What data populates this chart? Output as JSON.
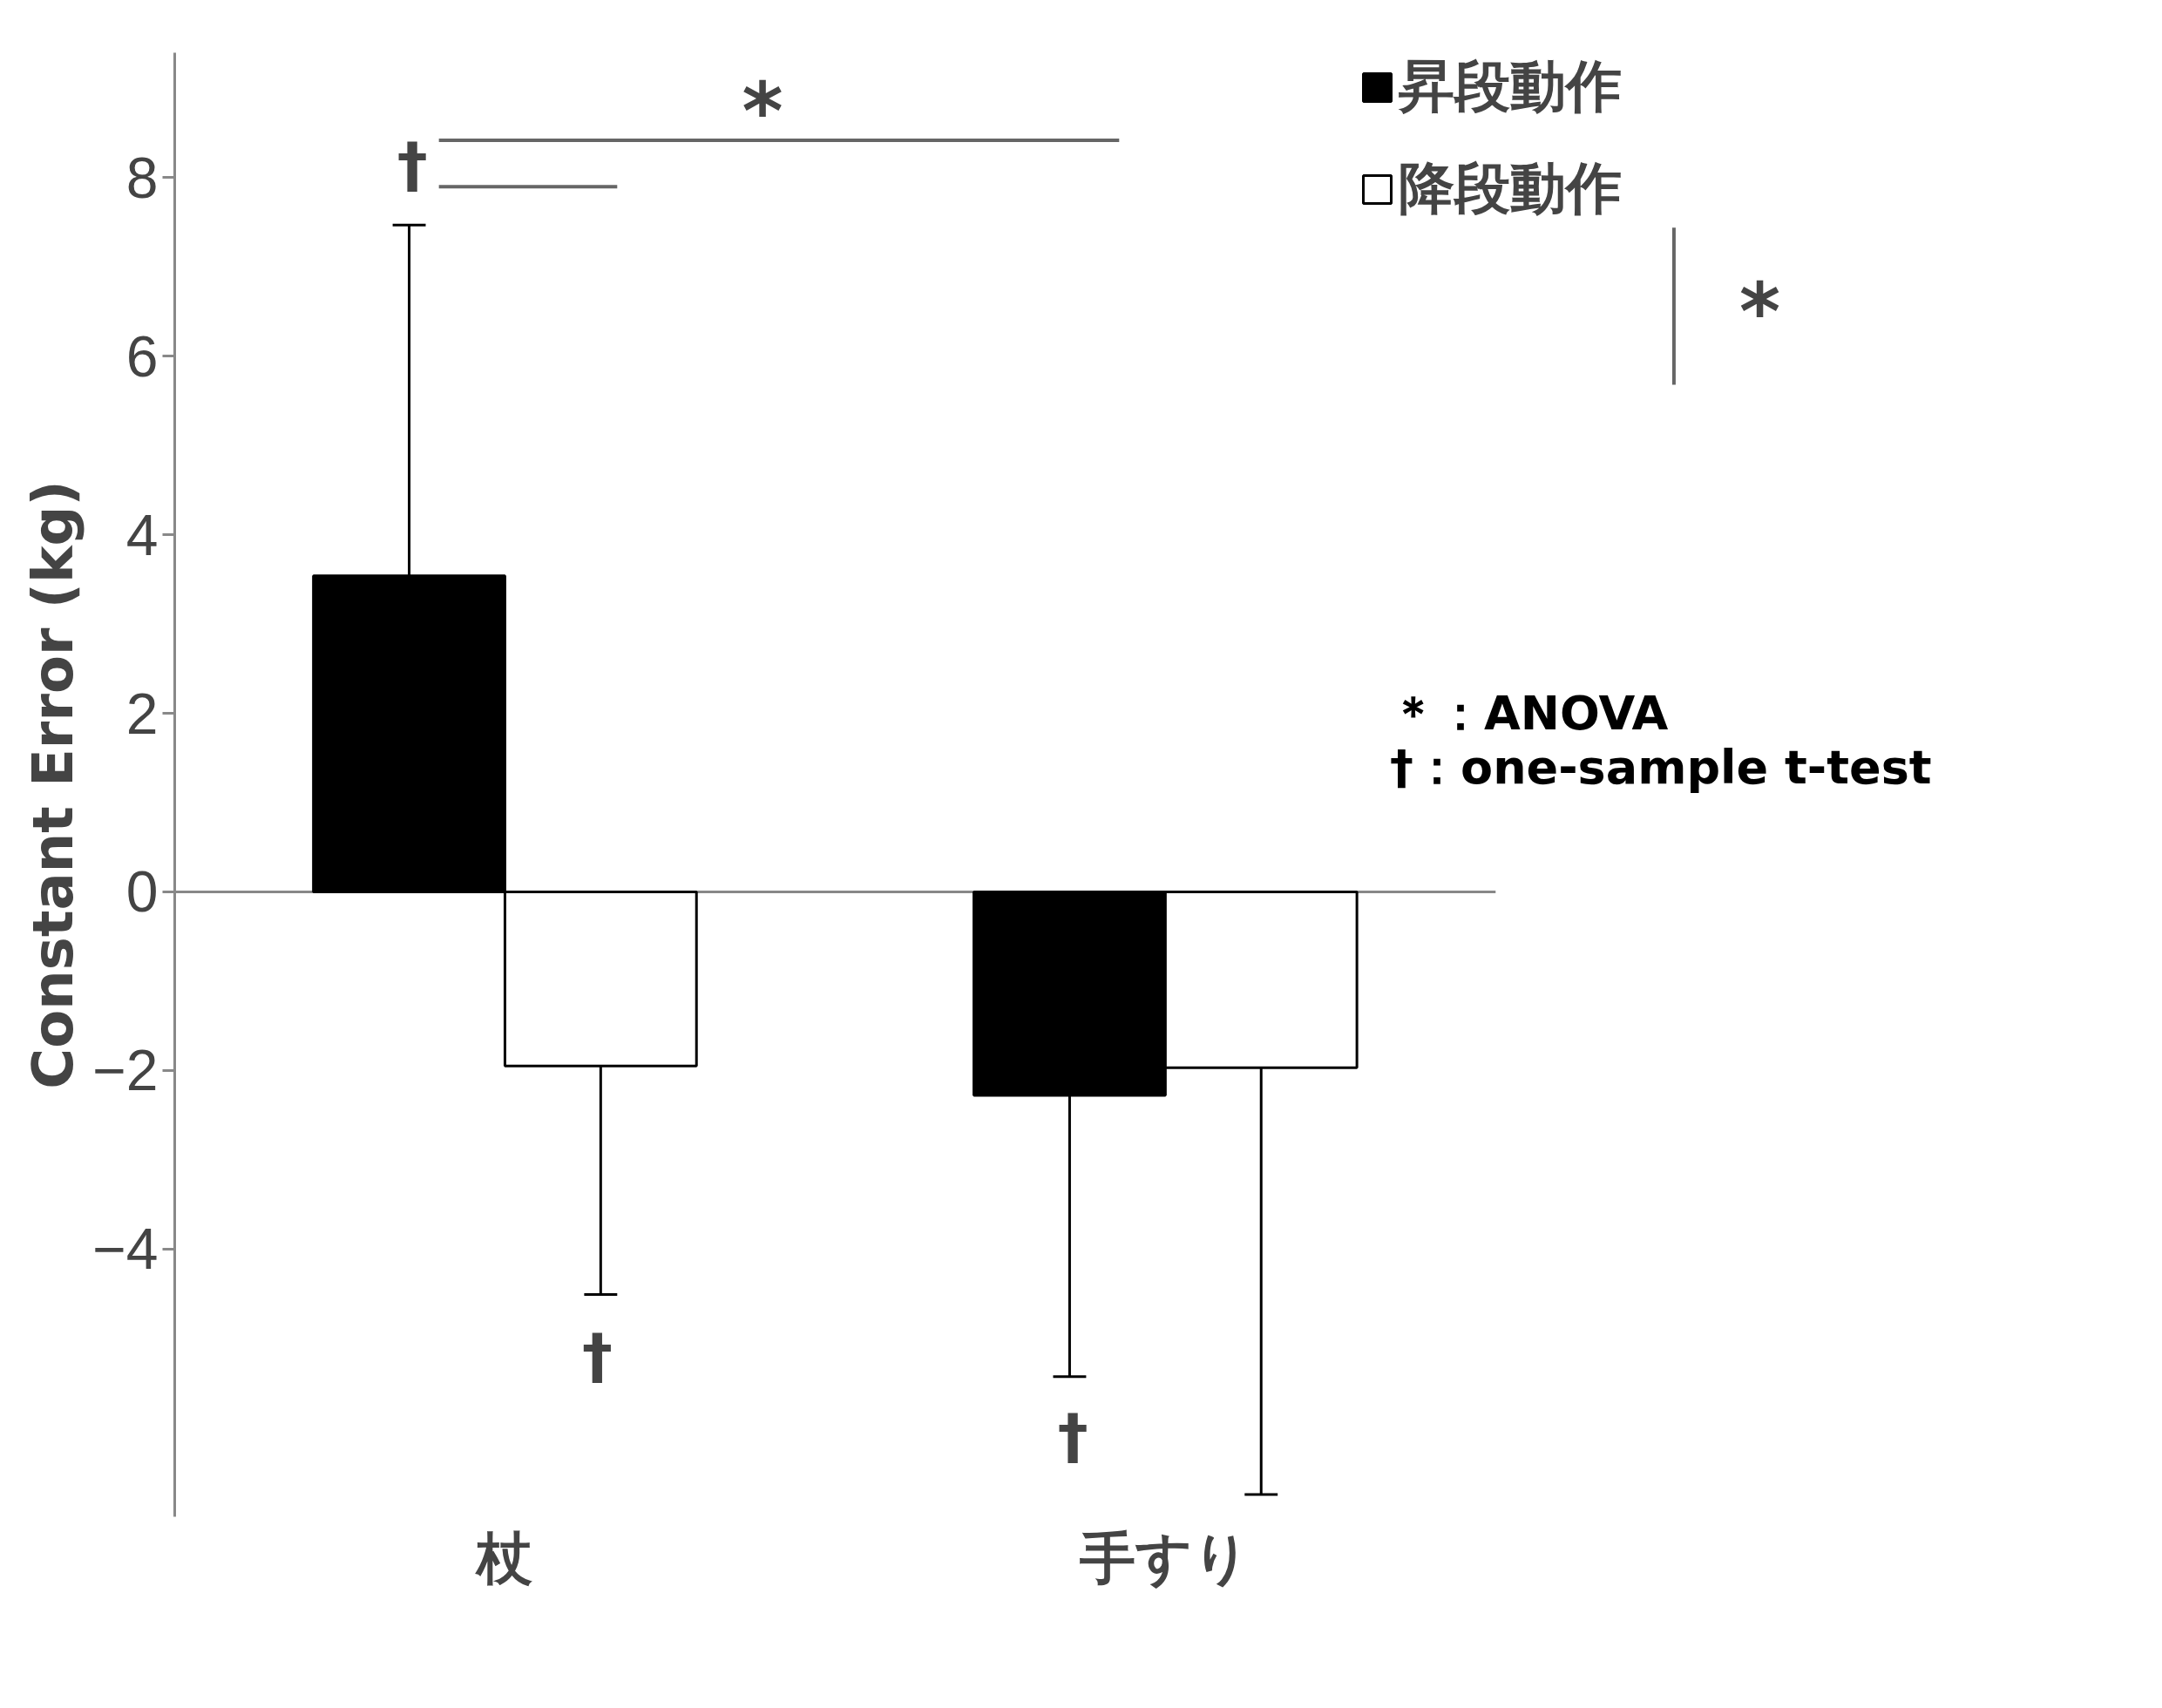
{
  "chart_data": {
    "type": "bar",
    "ylabel": "Constant Error (kg)",
    "categories": [
      "杖",
      "手すり"
    ],
    "series": [
      {
        "name": "昇段動作",
        "color": "#000000",
        "values": [
          3.54,
          -2.28
        ],
        "errors": [
          [
            3.54,
            7.47
          ],
          [
            -5.43,
            -2.28
          ]
        ]
      },
      {
        "name": "降段動作",
        "color": "#ffffff",
        "values": [
          -1.95,
          -1.97
        ],
        "errors": [
          [
            -4.51,
            -1.95
          ],
          [
            -6.75,
            -1.97
          ]
        ]
      }
    ],
    "ylim": [
      -7,
      9.4
    ],
    "yticks": [
      -4,
      -2,
      0,
      2,
      4,
      6,
      8
    ],
    "legend": "top right",
    "annotations": [
      "*",
      "*",
      "＊：ANOVA",
      "†：one-sample t-test",
      "†",
      "†",
      "†"
    ]
  }
}
